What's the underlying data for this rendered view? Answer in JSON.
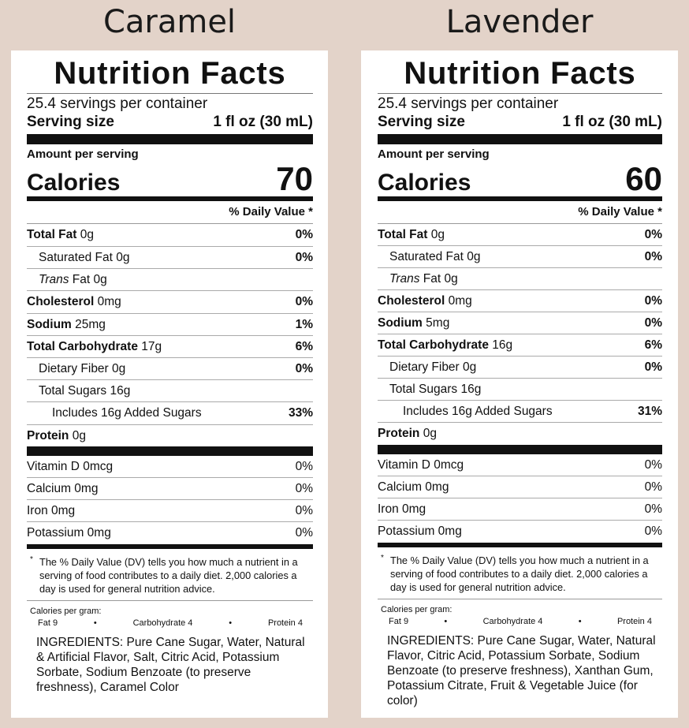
{
  "labels": [
    {
      "flavor": "Caramel",
      "title": "Nutrition Facts",
      "servings_per_container": "25.4 servings per container",
      "serving_size_label": "Serving size",
      "serving_size_value": "1 fl oz (30 mL)",
      "amount_per_serving": "Amount per serving",
      "calories_label": "Calories",
      "calories_value": "70",
      "dv_header": "% Daily Value *",
      "nutrients": [
        {
          "name": "Total Fat",
          "amount": "0g",
          "dv": "0%"
        },
        {
          "name": "Saturated Fat",
          "amount": "0g",
          "dv": "0%"
        },
        {
          "name": "Trans",
          "amount": "Fat 0g",
          "dv": ""
        },
        {
          "name": "Cholesterol",
          "amount": "0mg",
          "dv": "0%"
        },
        {
          "name": "Sodium",
          "amount": "25mg",
          "dv": "1%"
        },
        {
          "name": "Total Carbohydrate",
          "amount": "17g",
          "dv": "6%"
        },
        {
          "name": "Dietary Fiber",
          "amount": "0g",
          "dv": "0%"
        },
        {
          "name": "Total Sugars",
          "amount": "16g",
          "dv": ""
        },
        {
          "name": "Includes 16g Added Sugars",
          "amount": "",
          "dv": "33%"
        },
        {
          "name": "Protein",
          "amount": "0g",
          "dv": ""
        }
      ],
      "vitamins": [
        {
          "name": "Vitamin D 0mcg",
          "dv": "0%"
        },
        {
          "name": "Calcium 0mg",
          "dv": "0%"
        },
        {
          "name": "Iron 0mg",
          "dv": "0%"
        },
        {
          "name": "Potassium 0mg",
          "dv": "0%"
        }
      ],
      "footnote_star": "*",
      "footnote": "The % Daily Value (DV) tells you how much a nutrient in a serving of food contributes to a daily diet. 2,000 calories a day is used for general nutrition advice.",
      "calories_per_gram_label": "Calories per gram:",
      "cpg_fat": "Fat 9",
      "cpg_carb": "Carbohydrate 4",
      "cpg_protein": "Protein 4",
      "cpg_bullet": "•",
      "ingredients": "INGREDIENTS: Pure Cane Sugar, Water, Natural & Artificial Flavor, Salt, Citric Acid, Potassium Sorbate, Sodium Benzoate (to preserve freshness), Caramel Color"
    },
    {
      "flavor": "Lavender",
      "title": "Nutrition Facts",
      "servings_per_container": "25.4 servings per container",
      "serving_size_label": "Serving size",
      "serving_size_value": "1 fl oz (30 mL)",
      "amount_per_serving": "Amount per serving",
      "calories_label": "Calories",
      "calories_value": "60",
      "dv_header": "% Daily Value *",
      "nutrients": [
        {
          "name": "Total Fat",
          "amount": "0g",
          "dv": "0%"
        },
        {
          "name": "Saturated Fat",
          "amount": "0g",
          "dv": "0%"
        },
        {
          "name": "Trans",
          "amount": "Fat 0g",
          "dv": ""
        },
        {
          "name": "Cholesterol",
          "amount": "0mg",
          "dv": "0%"
        },
        {
          "name": "Sodium",
          "amount": "5mg",
          "dv": "0%"
        },
        {
          "name": "Total Carbohydrate",
          "amount": "16g",
          "dv": "6%"
        },
        {
          "name": "Dietary Fiber",
          "amount": "0g",
          "dv": "0%"
        },
        {
          "name": "Total Sugars",
          "amount": "16g",
          "dv": ""
        },
        {
          "name": "Includes 16g Added Sugars",
          "amount": "",
          "dv": "31%"
        },
        {
          "name": "Protein",
          "amount": "0g",
          "dv": ""
        }
      ],
      "vitamins": [
        {
          "name": "Vitamin D 0mcg",
          "dv": "0%"
        },
        {
          "name": "Calcium 0mg",
          "dv": "0%"
        },
        {
          "name": "Iron 0mg",
          "dv": "0%"
        },
        {
          "name": "Potassium 0mg",
          "dv": "0%"
        }
      ],
      "footnote_star": "*",
      "footnote": "The % Daily Value (DV) tells you how much a nutrient in a serving of food contributes to a daily diet. 2,000 calories a day is used for general nutrition advice.",
      "calories_per_gram_label": "Calories per gram:",
      "cpg_fat": "Fat 9",
      "cpg_carb": "Carbohydrate 4",
      "cpg_protein": "Protein 4",
      "cpg_bullet": "•",
      "ingredients": "INGREDIENTS: Pure Cane Sugar, Water, Natural Flavor, Citric Acid, Potassium Sorbate, Sodium Benzoate (to preserve freshness), Xanthan Gum, Potassium Citrate, Fruit & Vegetable Juice (for color)"
    }
  ]
}
